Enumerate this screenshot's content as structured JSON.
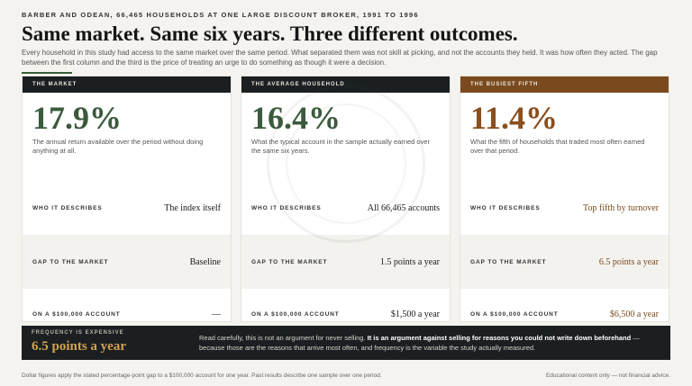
{
  "header": {
    "eyebrow": "BARBER AND ODEAN, 66,465 HOUSEHOLDS AT ONE LARGE DISCOUNT BROKER, 1991 TO 1996",
    "headline": "Same market. Same six years. Three different outcomes.",
    "intro": "Every household in this study had access to the same market over the same period. What separated them was not skill at picking, and not the accounts they held. It was how often they acted. The gap between the first column and the third is the price of treating an urge to do something as though it were a decision."
  },
  "cards": [
    {
      "header": "THE MARKET",
      "figure": "17.9%",
      "description": "The annual return available over the period without doing anything at all.",
      "rows": [
        {
          "label": "WHO IT DESCRIBES",
          "value": "The index itself"
        },
        {
          "label": "GAP TO THE MARKET",
          "value": "Baseline"
        },
        {
          "label": "ON A $100,000 ACCOUNT",
          "value": "—"
        }
      ]
    },
    {
      "header": "THE AVERAGE HOUSEHOLD",
      "figure": "16.4%",
      "description": "What the typical account in the sample actually earned over the same six years.",
      "rows": [
        {
          "label": "WHO IT DESCRIBES",
          "value": "All 66,465 accounts"
        },
        {
          "label": "GAP TO THE MARKET",
          "value": "1.5 points a year"
        },
        {
          "label": "ON A $100,000 ACCOUNT",
          "value": "$1,500 a year"
        }
      ]
    },
    {
      "header": "THE BUSIEST FIFTH",
      "figure": "11.4%",
      "description": "What the fifth of households that traded most often earned over that period.",
      "rows": [
        {
          "label": "WHO IT DESCRIBES",
          "value": "Top fifth by turnover"
        },
        {
          "label": "GAP TO THE MARKET",
          "value": "6.5 points a year"
        },
        {
          "label": "ON A $100,000 ACCOUNT",
          "value": "$6,500 a year"
        }
      ]
    }
  ],
  "banner": {
    "eyebrow": "FREQUENCY IS EXPENSIVE",
    "figure": "6.5 points a year",
    "text_lead": "Read carefully, this is not an argument for never selling. ",
    "text_strong": "It is an argument against selling for reasons you could not write down beforehand",
    "text_tail": " — because those are the reasons that arrive most often, and frequency is the variable the study actually measured."
  },
  "footer": {
    "left": "Dollar figures apply the stated percentage-point gap to a $100,000 account for one year. Past results describe one sample over one period.",
    "right": "Educational content only — not financial advice."
  },
  "colors": {
    "accent_green": "#3a5a3c",
    "accent_rust": "#7a4a1e",
    "banner_gold": "#d4a24c",
    "dark": "#1b1f22"
  },
  "icons": [
    "watermark-seal-icon"
  ]
}
